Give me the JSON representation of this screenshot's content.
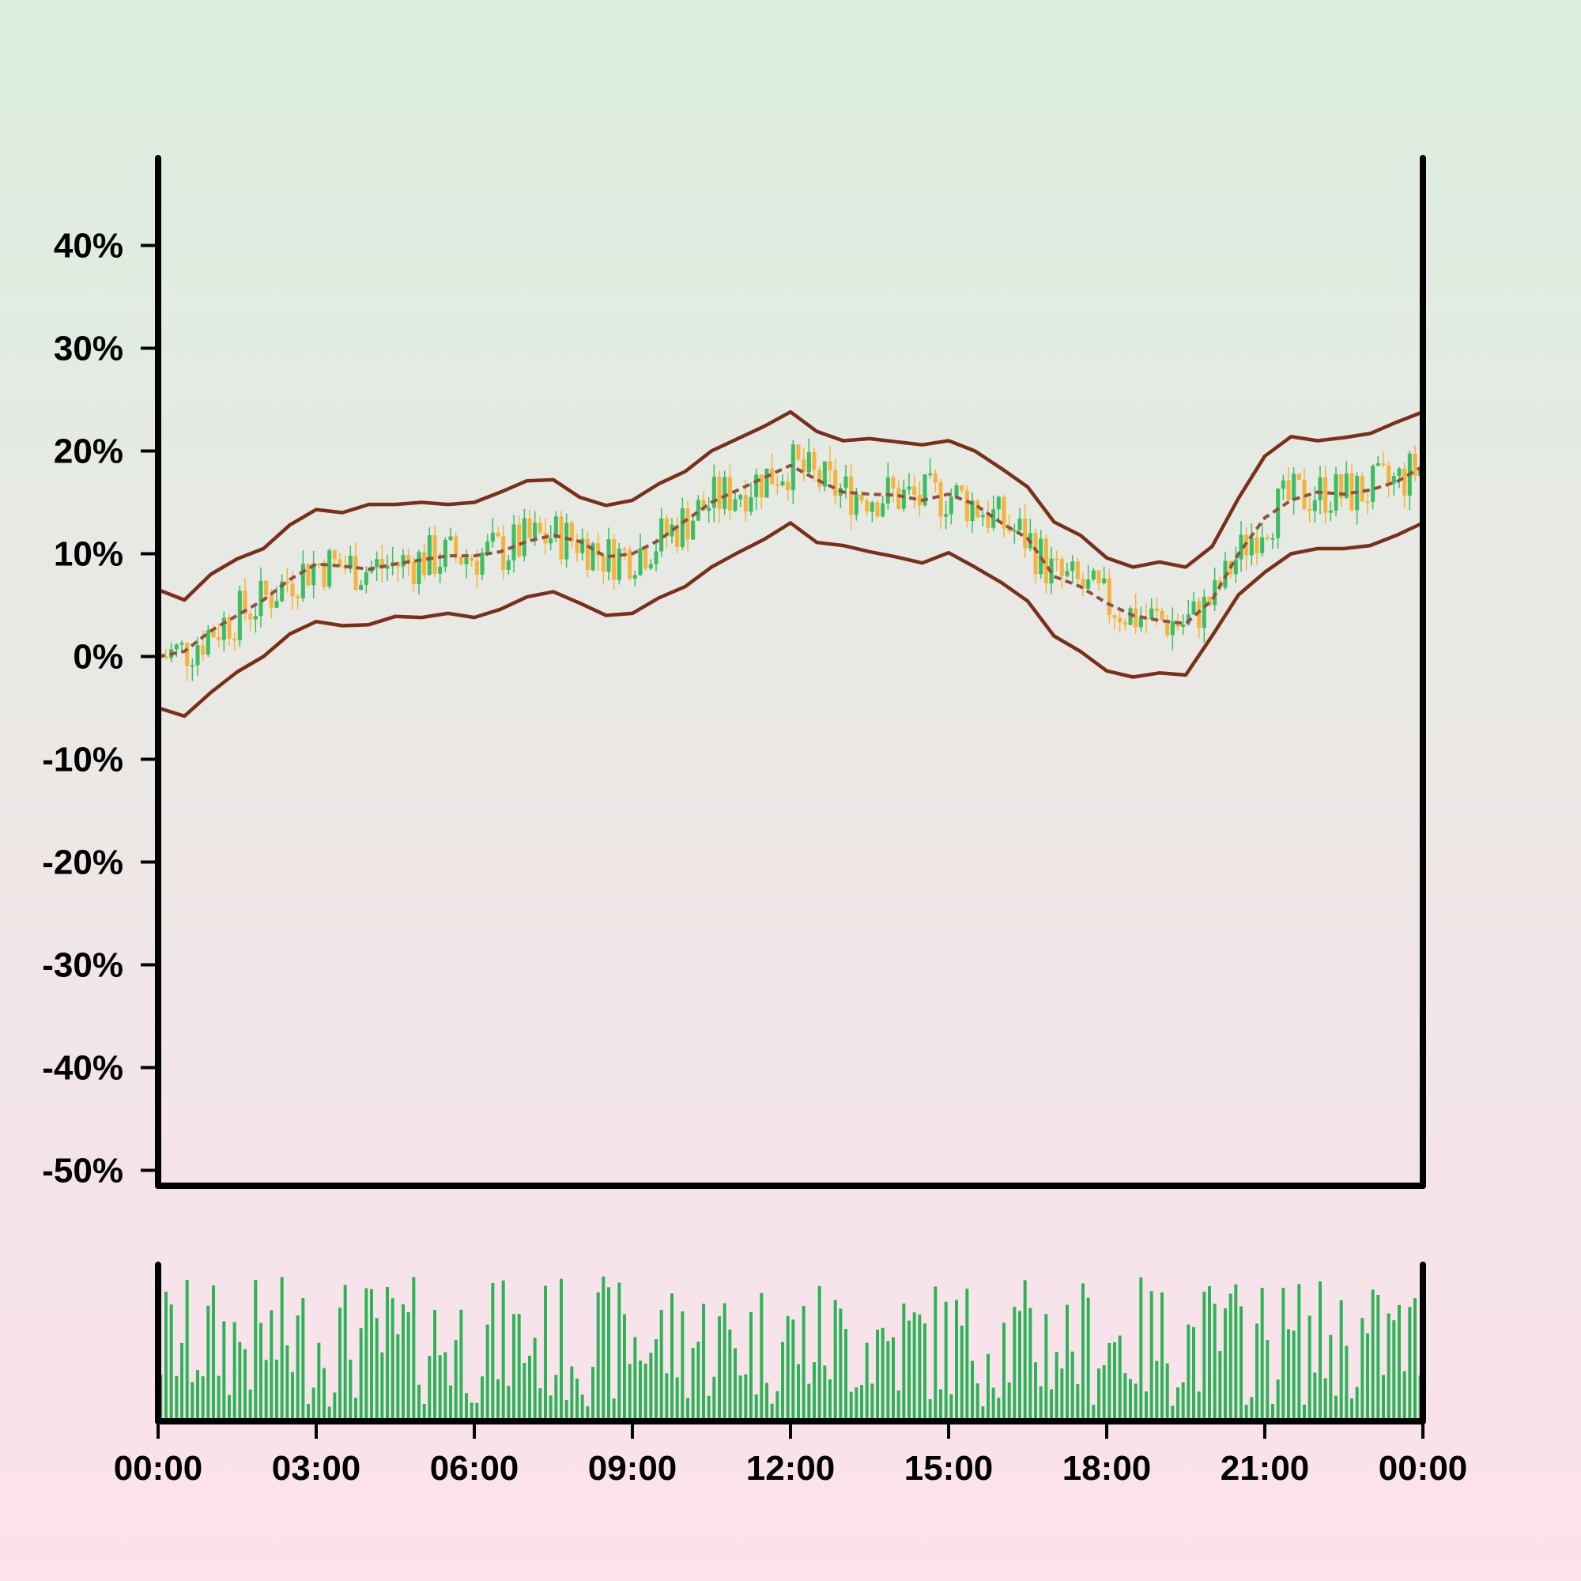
{
  "chart_data": {
    "type": "candlestick",
    "title": "",
    "xlabel": "",
    "ylabel": "",
    "x_ticks": [
      "00:00",
      "03:00",
      "06:00",
      "09:00",
      "12:00",
      "15:00",
      "18:00",
      "21:00",
      "00:00"
    ],
    "x_range_hours": [
      0,
      24
    ],
    "y_ticks": [
      "40%",
      "30%",
      "20%",
      "10%",
      "0%",
      "-10%",
      "-20%",
      "-30%",
      "-40%",
      "-50%"
    ],
    "ylim": [
      -51.5,
      48.5
    ],
    "bollinger_bands": {
      "hours": [
        0,
        0.5,
        1,
        1.5,
        2,
        2.5,
        3,
        3.5,
        4,
        4.5,
        5,
        5.5,
        6,
        6.5,
        7,
        7.5,
        8,
        8.5,
        9,
        9.5,
        10,
        10.5,
        11,
        11.5,
        12,
        12.5,
        13,
        13.5,
        14,
        14.5,
        15,
        15.5,
        16,
        16.5,
        17,
        17.5,
        18,
        18.5,
        19,
        19.5,
        20,
        20.5,
        21,
        21.5,
        22,
        22.5,
        23,
        23.5,
        24
      ],
      "middle": [
        0.0,
        0.5,
        2.5,
        4.0,
        5.5,
        7.5,
        9.0,
        8.8,
        8.5,
        9.0,
        9.4,
        9.8,
        9.8,
        10.2,
        11.2,
        11.8,
        11.2,
        9.7,
        10.0,
        11.3,
        13.2,
        15.0,
        16.2,
        17.4,
        18.6,
        17.2,
        16.0,
        15.8,
        15.7,
        15.2,
        15.8,
        14.8,
        13.0,
        11.5,
        7.8,
        6.8,
        5.2,
        4.0,
        3.5,
        3.2,
        5.5,
        10.0,
        13.5,
        15.2,
        16.0,
        15.8,
        16.2,
        17.0,
        18.5
      ],
      "upper": [
        6.5,
        5.5,
        8.0,
        9.5,
        10.5,
        12.8,
        14.3,
        14.0,
        14.8,
        14.8,
        15.0,
        14.8,
        15.0,
        16.0,
        17.1,
        17.2,
        15.5,
        14.7,
        15.2,
        16.8,
        18.0,
        20.0,
        21.2,
        22.4,
        23.8,
        21.9,
        21.0,
        21.2,
        20.9,
        20.6,
        21.0,
        20.0,
        18.3,
        16.5,
        13.1,
        11.8,
        9.6,
        8.7,
        9.2,
        8.7,
        10.7,
        15.4,
        19.5,
        21.4,
        21.0,
        21.3,
        21.7,
        22.8,
        23.8
      ],
      "lower": [
        -5.0,
        -5.8,
        -3.5,
        -1.5,
        0.0,
        2.2,
        3.4,
        3.0,
        3.1,
        3.9,
        3.8,
        4.2,
        3.8,
        4.6,
        5.8,
        6.3,
        5.2,
        4.0,
        4.2,
        5.7,
        6.8,
        8.7,
        10.1,
        11.4,
        13.0,
        11.1,
        10.8,
        10.2,
        9.7,
        9.1,
        10.1,
        8.7,
        7.2,
        5.4,
        2.0,
        0.5,
        -1.4,
        -2.0,
        -1.6,
        -1.8,
        2.0,
        6.0,
        8.2,
        10.0,
        10.5,
        10.5,
        10.8,
        11.8,
        13.0
      ]
    },
    "colors": {
      "up_candle": "#3dbd62",
      "down_candle": "#f4b43c",
      "band_line": "#7b2e1a",
      "middle_line": "#8f5040",
      "volume_bar": "#2db357",
      "axis": "#000000",
      "background_top": "#dbeedf",
      "background_bottom": "#fde1ec"
    },
    "volume_panel": true,
    "grid": false,
    "legend": "none"
  }
}
